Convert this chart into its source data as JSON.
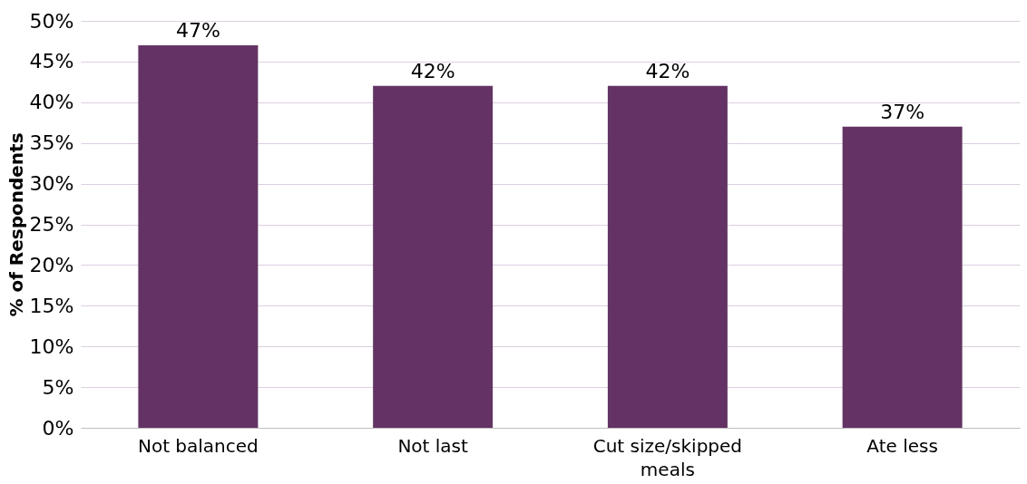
{
  "chart_data": {
    "type": "bar",
    "ylabel": "% of Respondents",
    "categories": [
      "Not balanced",
      "Not last",
      "Cut size/skipped meals",
      "Ate less"
    ],
    "values": [
      47,
      42,
      42,
      37
    ],
    "value_labels": [
      "47%",
      "42%",
      "42%",
      "37%"
    ],
    "color": "#643264",
    "ylim": [
      0,
      50
    ],
    "yticks": [
      {
        "value": 0,
        "label": "0%"
      },
      {
        "value": 5,
        "label": "5%"
      },
      {
        "value": 10,
        "label": "10%"
      },
      {
        "value": 15,
        "label": "15%"
      },
      {
        "value": 20,
        "label": "20%"
      },
      {
        "value": 25,
        "label": "25%"
      },
      {
        "value": 30,
        "label": "30%"
      },
      {
        "value": 35,
        "label": "35%"
      },
      {
        "value": 40,
        "label": "40%"
      },
      {
        "value": 45,
        "label": "45%"
      },
      {
        "value": 50,
        "label": "50%"
      }
    ],
    "grid": "y"
  }
}
